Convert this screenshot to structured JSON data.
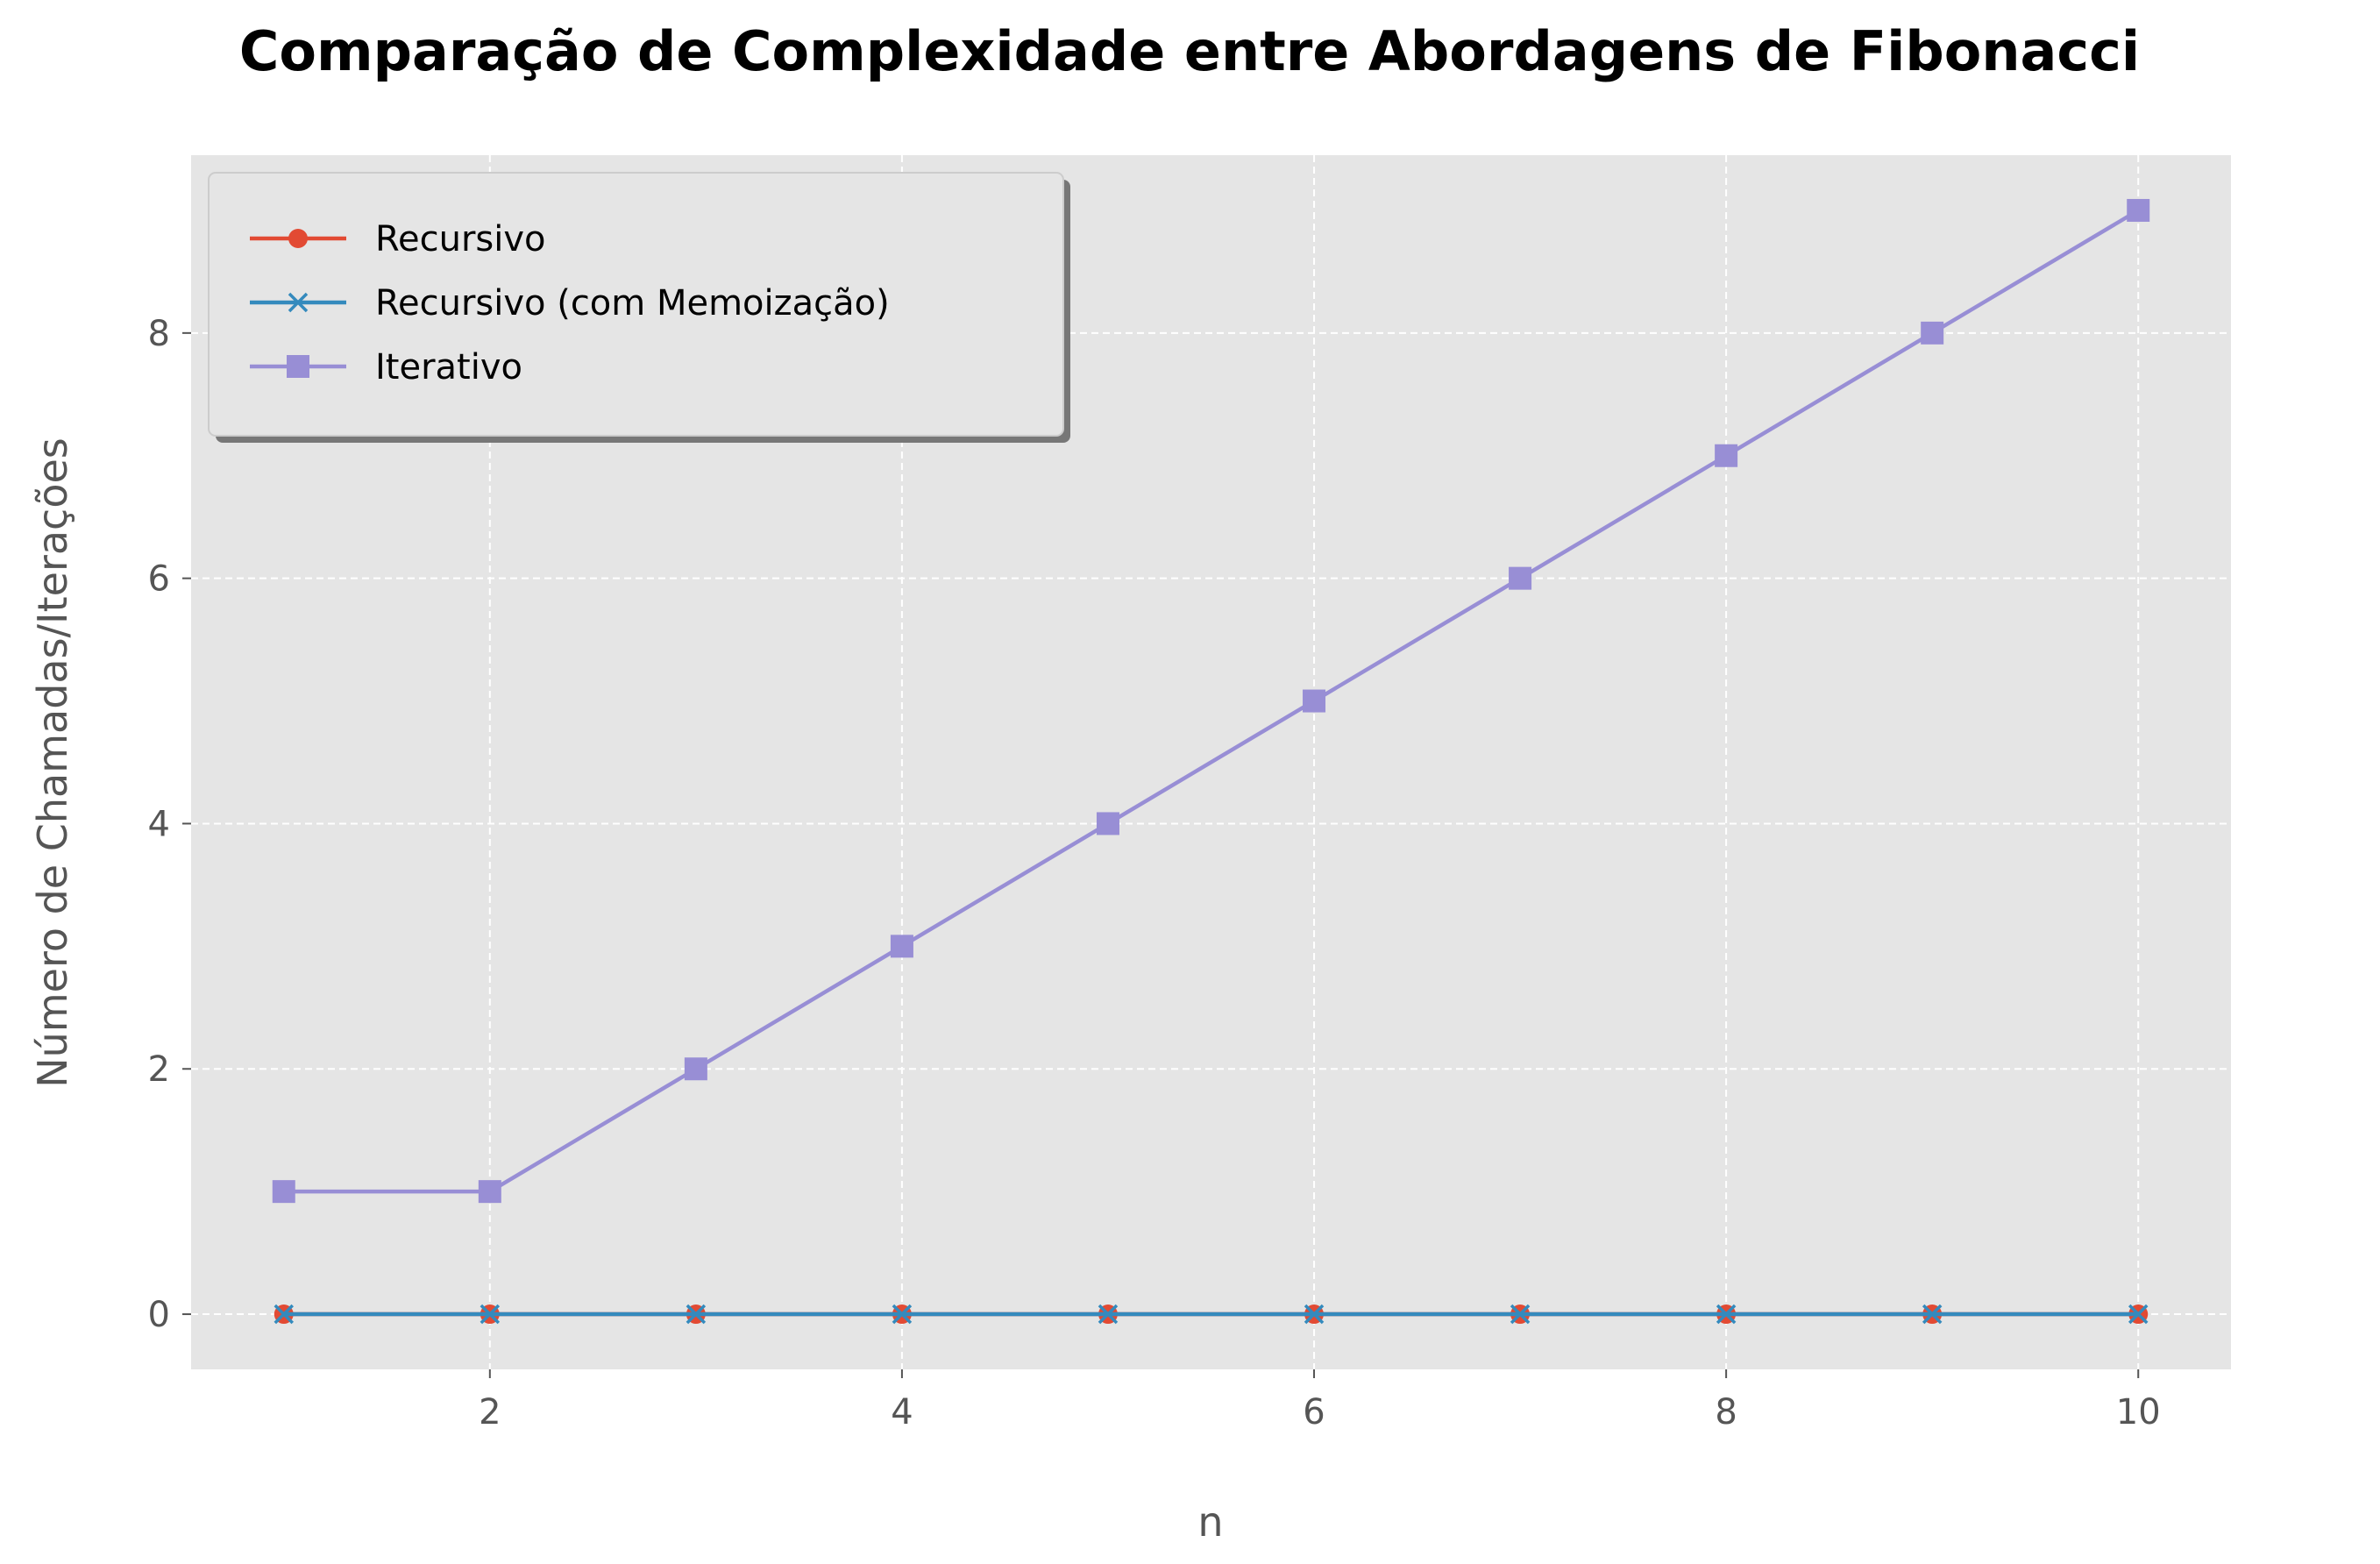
{
  "chart_data": {
    "type": "line",
    "title": "Comparação de Complexidade entre Abordagens de Fibonacci",
    "xlabel": "n",
    "ylabel": "Número de Chamadas/Iterações",
    "x": [
      1,
      2,
      3,
      4,
      5,
      6,
      7,
      8,
      9,
      10
    ],
    "xlim": [
      0.55,
      10.45
    ],
    "ylim": [
      -0.45,
      9.45
    ],
    "xticks": [
      2,
      4,
      6,
      8,
      10
    ],
    "yticks": [
      0,
      2,
      4,
      6,
      8
    ],
    "grid": true,
    "legend_position": "upper-left",
    "background": "#e5e5e5",
    "series": [
      {
        "name": "Recursivo",
        "values": [
          0,
          0,
          0,
          0,
          0,
          0,
          0,
          0,
          0,
          0
        ],
        "color": "#e24a33",
        "marker": "circle"
      },
      {
        "name": "Recursivo (com Memoização)",
        "values": [
          0,
          0,
          0,
          0,
          0,
          0,
          0,
          0,
          0,
          0
        ],
        "color": "#348abd",
        "marker": "x"
      },
      {
        "name": "Iterativo",
        "values": [
          1,
          1,
          2,
          3,
          4,
          5,
          6,
          7,
          8,
          9
        ],
        "color": "#988ed5",
        "marker": "square"
      }
    ]
  }
}
